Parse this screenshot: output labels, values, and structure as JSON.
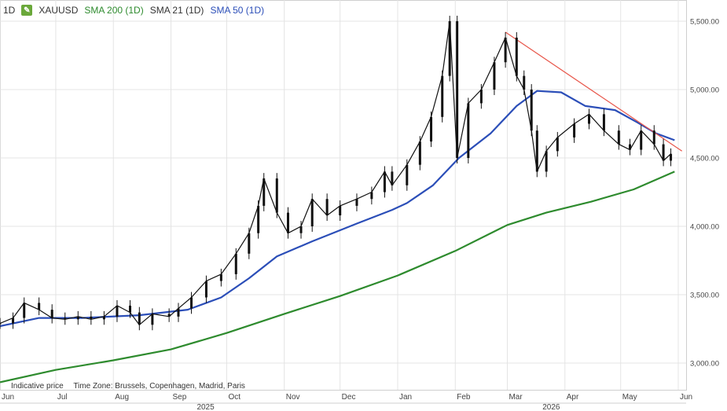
{
  "header": {
    "timeframe": "1D",
    "symbol": "XAUUSD",
    "indicators": [
      {
        "label": "SMA 200 (1D)",
        "color": "#2e8b2e"
      },
      {
        "label": "SMA 21 (1D)",
        "color": "#333333"
      },
      {
        "label": "SMA 50 (1D)",
        "color": "#2b4eb8"
      }
    ]
  },
  "footer": {
    "note": "Indicative price",
    "timezone": "Time Zone: Brussels, Copenhagen, Madrid, Paris"
  },
  "colors": {
    "sma200": "#2e8b2e",
    "sma50": "#2b4eb8",
    "trendline": "#e8564a",
    "candle": "#111111",
    "grid": "#e4e4e4"
  },
  "chart_data": {
    "type": "line",
    "title": "XAUUSD",
    "ylim": [
      2750,
      5650
    ],
    "y_ticks": [
      "3,000.00",
      "3,500.00",
      "4,000.00",
      "4,500.00",
      "5,000.00",
      "5,500.00"
    ],
    "x_ticks": [
      "Jun",
      "Jul",
      "Aug",
      "Sep",
      "Oct",
      "Nov",
      "Dec",
      "Jan",
      "Feb",
      "Mar",
      "Apr",
      "May",
      "Jun"
    ],
    "year_labels": [
      "2025",
      "2026"
    ],
    "grid": true,
    "x_domain": [
      "2025-06-01",
      "2026-06-01"
    ],
    "series": [
      {
        "name": "XAUUSD",
        "style": "candlestick-approx",
        "points": [
          [
            "2025-06-01",
            3290
          ],
          [
            "2025-06-08",
            3330
          ],
          [
            "2025-06-14",
            3440
          ],
          [
            "2025-06-22",
            3390
          ],
          [
            "2025-06-29",
            3330
          ],
          [
            "2025-07-06",
            3320
          ],
          [
            "2025-07-13",
            3340
          ],
          [
            "2025-07-20",
            3320
          ],
          [
            "2025-07-27",
            3340
          ],
          [
            "2025-08-03",
            3420
          ],
          [
            "2025-08-10",
            3370
          ],
          [
            "2025-08-15",
            3280
          ],
          [
            "2025-08-22",
            3360
          ],
          [
            "2025-08-31",
            3340
          ],
          [
            "2025-09-05",
            3400
          ],
          [
            "2025-09-12",
            3480
          ],
          [
            "2025-09-20",
            3600
          ],
          [
            "2025-09-28",
            3650
          ],
          [
            "2025-10-06",
            3800
          ],
          [
            "2025-10-13",
            3950
          ],
          [
            "2025-10-18",
            4150
          ],
          [
            "2025-10-21",
            4350
          ],
          [
            "2025-10-28",
            4100
          ],
          [
            "2025-11-03",
            3950
          ],
          [
            "2025-11-10",
            4000
          ],
          [
            "2025-11-16",
            4200
          ],
          [
            "2025-11-24",
            4080
          ],
          [
            "2025-12-01",
            4150
          ],
          [
            "2025-12-10",
            4200
          ],
          [
            "2025-12-18",
            4250
          ],
          [
            "2025-12-25",
            4400
          ],
          [
            "2025-12-29",
            4300
          ],
          [
            "2026-01-06",
            4450
          ],
          [
            "2026-01-13",
            4620
          ],
          [
            "2026-01-19",
            4800
          ],
          [
            "2026-01-25",
            5100
          ],
          [
            "2026-01-29",
            5500
          ],
          [
            "2026-02-02",
            4500
          ],
          [
            "2026-02-08",
            4900
          ],
          [
            "2026-02-15",
            5000
          ],
          [
            "2026-02-22",
            5200
          ],
          [
            "2026-02-28",
            5380
          ],
          [
            "2026-03-06",
            5100
          ],
          [
            "2026-03-10",
            5000
          ],
          [
            "2026-03-14",
            4700
          ],
          [
            "2026-03-17",
            4400
          ],
          [
            "2026-03-22",
            4550
          ],
          [
            "2026-03-28",
            4650
          ],
          [
            "2026-04-06",
            4750
          ],
          [
            "2026-04-14",
            4820
          ],
          [
            "2026-04-22",
            4700
          ],
          [
            "2026-04-30",
            4600
          ],
          [
            "2026-05-06",
            4560
          ],
          [
            "2026-05-12",
            4700
          ],
          [
            "2026-05-19",
            4600
          ],
          [
            "2026-05-24",
            4480
          ],
          [
            "2026-05-28",
            4530
          ]
        ]
      },
      {
        "name": "SMA 50 (1D)",
        "points": [
          [
            "2025-06-01",
            3270
          ],
          [
            "2025-06-22",
            3330
          ],
          [
            "2025-07-15",
            3330
          ],
          [
            "2025-08-15",
            3350
          ],
          [
            "2025-09-10",
            3390
          ],
          [
            "2025-09-28",
            3480
          ],
          [
            "2025-10-13",
            3620
          ],
          [
            "2025-10-28",
            3780
          ],
          [
            "2025-11-16",
            3890
          ],
          [
            "2025-12-10",
            4020
          ],
          [
            "2025-12-29",
            4120
          ],
          [
            "2026-01-06",
            4170
          ],
          [
            "2026-01-20",
            4300
          ],
          [
            "2026-02-03",
            4500
          ],
          [
            "2026-02-20",
            4680
          ],
          [
            "2026-03-06",
            4880
          ],
          [
            "2026-03-17",
            4990
          ],
          [
            "2026-03-30",
            4980
          ],
          [
            "2026-04-12",
            4880
          ],
          [
            "2026-04-28",
            4850
          ],
          [
            "2026-05-10",
            4760
          ],
          [
            "2026-05-20",
            4680
          ],
          [
            "2026-05-30",
            4630
          ]
        ]
      },
      {
        "name": "SMA 200 (1D)",
        "points": [
          [
            "2025-06-01",
            2860
          ],
          [
            "2025-07-01",
            2950
          ],
          [
            "2025-08-01",
            3020
          ],
          [
            "2025-09-01",
            3100
          ],
          [
            "2025-10-01",
            3220
          ],
          [
            "2025-11-01",
            3360
          ],
          [
            "2025-12-01",
            3490
          ],
          [
            "2026-01-01",
            3640
          ],
          [
            "2026-02-01",
            3820
          ],
          [
            "2026-03-01",
            4010
          ],
          [
            "2026-03-22",
            4100
          ],
          [
            "2026-04-15",
            4180
          ],
          [
            "2026-05-08",
            4270
          ],
          [
            "2026-05-30",
            4400
          ]
        ]
      },
      {
        "name": "Trendline",
        "points": [
          [
            "2026-02-28",
            5420
          ],
          [
            "2026-06-03",
            4550
          ]
        ]
      }
    ]
  }
}
